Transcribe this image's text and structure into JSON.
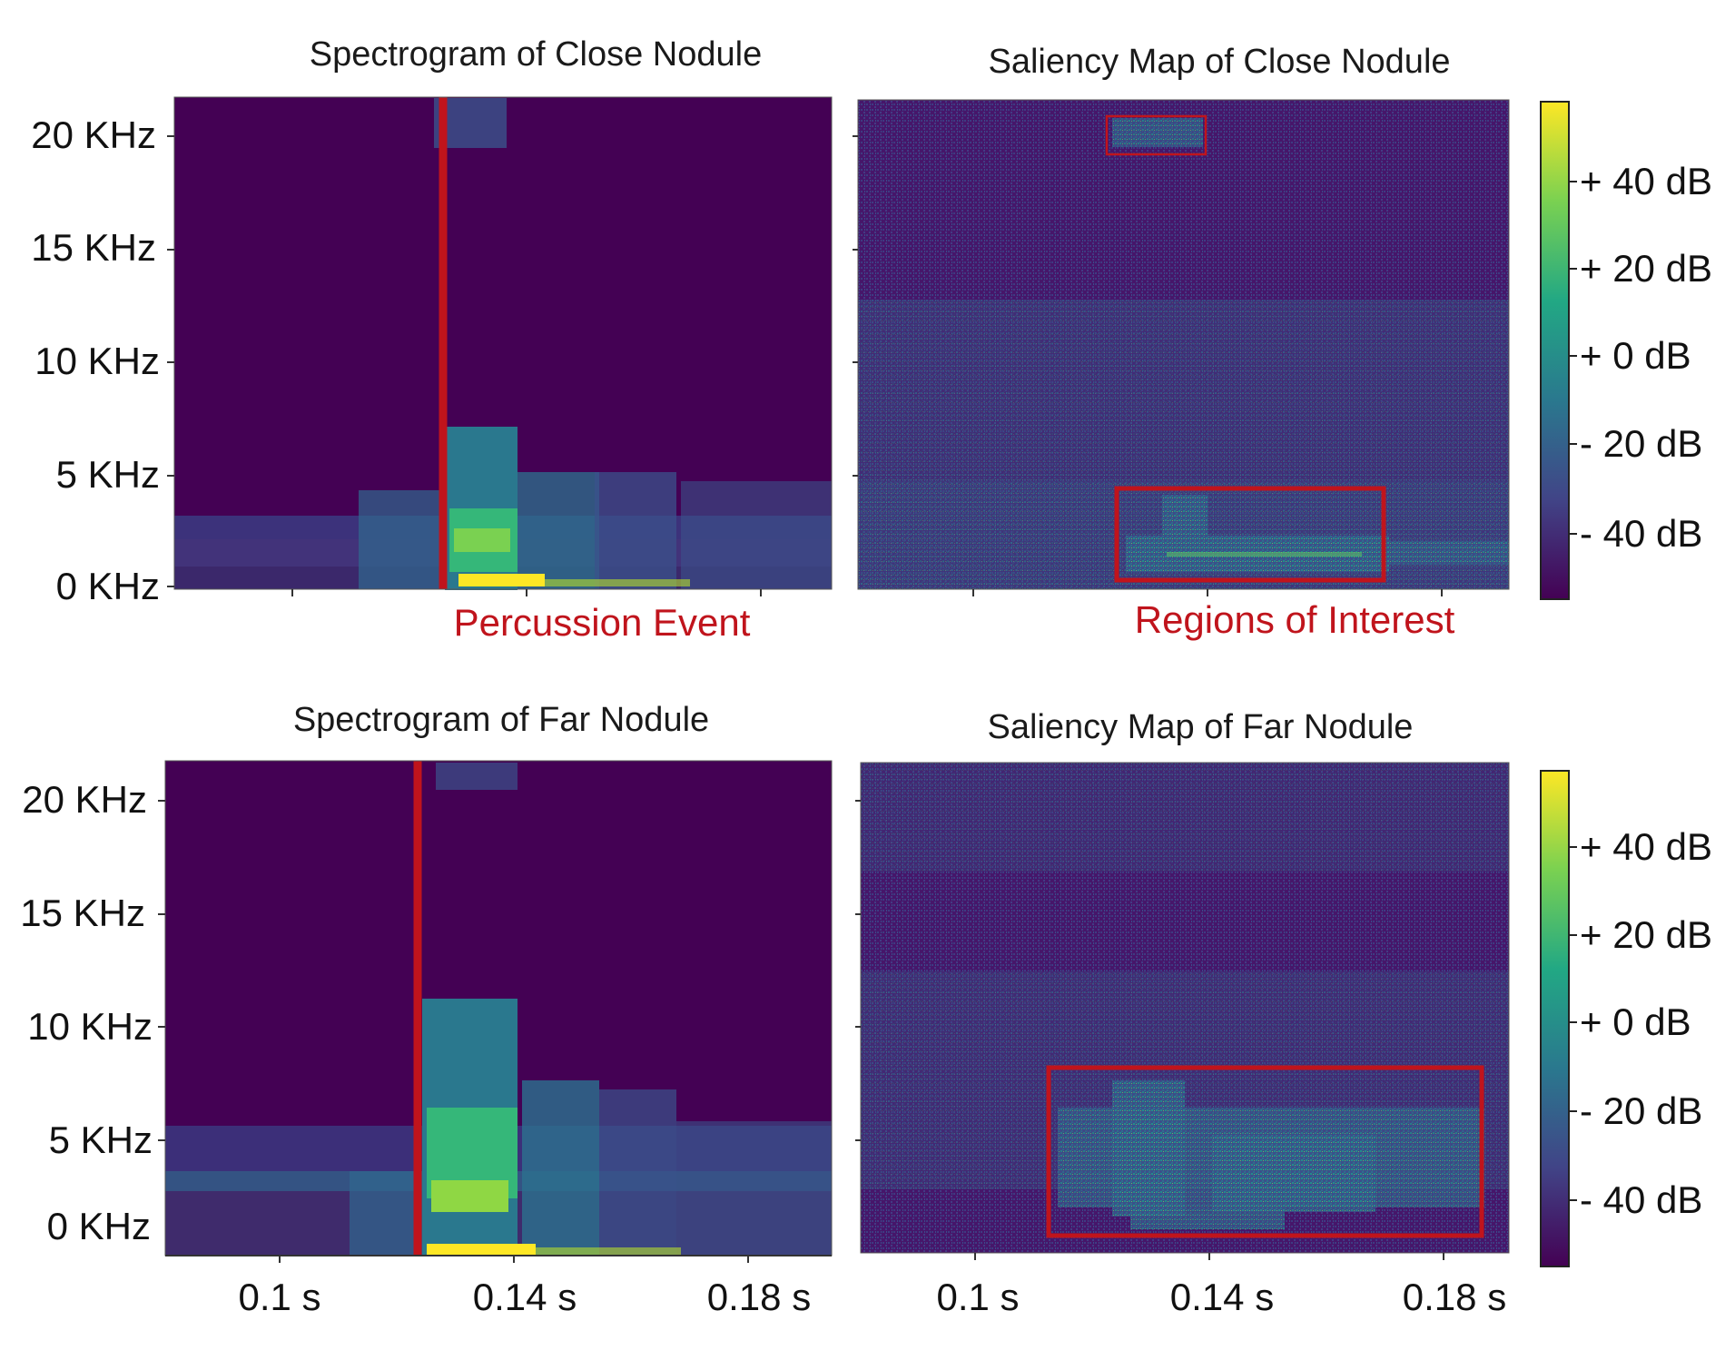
{
  "chart_data": [
    {
      "type": "heatmap",
      "title": "Spectrogram of Close Nodule",
      "y_ticks": [
        "20 KHz",
        "15 KHz",
        "10 KHz",
        "5 KHz",
        "0 KHz"
      ],
      "x_ticks": [],
      "annotation": "Percussion Event",
      "annotation_kind": "vertical-line",
      "event_time_fraction": 0.41,
      "colormap": "viridis"
    },
    {
      "type": "heatmap",
      "title": "Saliency Map of Close Nodule",
      "y_ticks": [],
      "x_ticks": [],
      "annotation": "Regions of Interest",
      "annotation_kind": "boxes",
      "colormap": "viridis",
      "colorbar": {
        "labels": [
          "+ 40 dB",
          "+ 20 dB",
          "+ 0 dB",
          "- 20 dB",
          "- 40 dB"
        ]
      }
    },
    {
      "type": "heatmap",
      "title": "Spectrogram of Far Nodule",
      "y_ticks": [
        "20 KHz",
        "15 KHz",
        "10 KHz",
        "5 KHz",
        "0 KHz"
      ],
      "x_ticks": [
        "0.1 s",
        "0.14 s",
        "0.18 s"
      ],
      "annotation_kind": "vertical-line",
      "event_time_fraction": 0.38,
      "colormap": "viridis"
    },
    {
      "type": "heatmap",
      "title": "Saliency Map of Far Nodule",
      "y_ticks": [],
      "x_ticks": [
        "0.1 s",
        "0.14 s",
        "0.18 s"
      ],
      "annotation_kind": "boxes",
      "colormap": "viridis",
      "colorbar": {
        "labels": [
          "+ 40 dB",
          "+ 20 dB",
          "+ 0 dB",
          "- 20 dB",
          "- 40 dB"
        ]
      }
    }
  ],
  "colors": {
    "background_dark": "#440154",
    "mid": "#21918c",
    "bright": "#fde725",
    "annotation": "#c0141c"
  }
}
